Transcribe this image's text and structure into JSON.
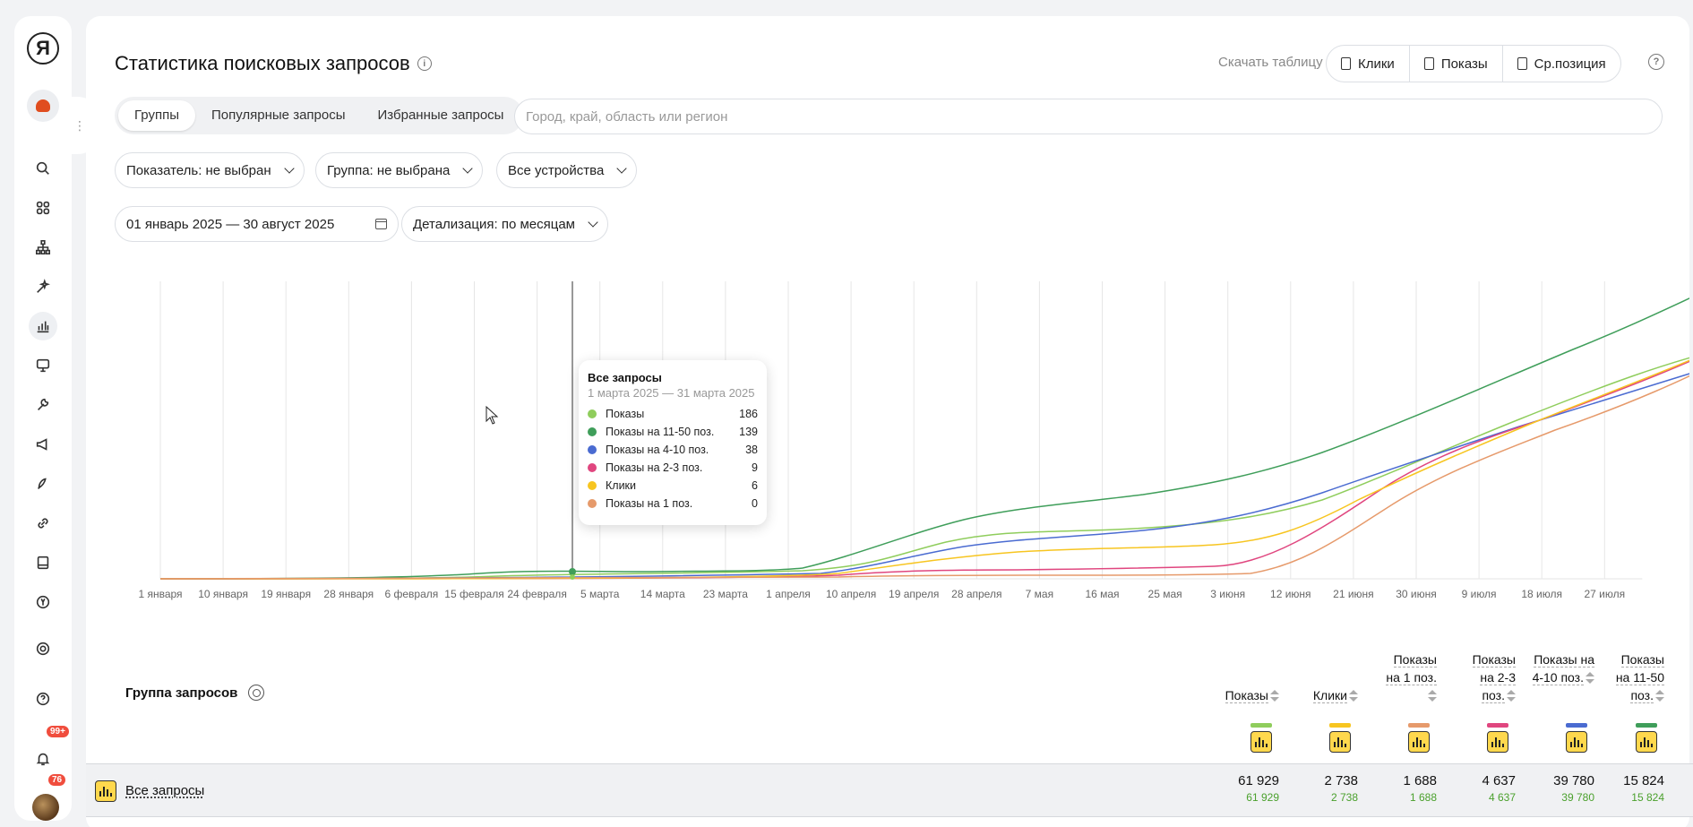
{
  "rail": {
    "logo": "Я",
    "items": [
      {
        "icon": "search-icon",
        "active": false
      },
      {
        "icon": "grid-icon",
        "active": false
      },
      {
        "icon": "sitemap-icon",
        "active": false
      },
      {
        "icon": "magic-wand-icon",
        "active": false
      },
      {
        "icon": "bar-chart-icon",
        "active": true
      },
      {
        "icon": "monitor-icon",
        "active": false
      },
      {
        "icon": "wrench-icon",
        "active": false
      },
      {
        "icon": "megaphone-icon",
        "active": false
      },
      {
        "icon": "rocket-hand-icon",
        "active": false
      },
      {
        "icon": "link-icon",
        "active": false
      },
      {
        "icon": "book-icon",
        "active": false
      },
      {
        "icon": "yandex-circle-icon",
        "active": false
      },
      {
        "icon": "settings-icon",
        "active": false
      },
      {
        "icon": "help-icon",
        "active": false
      },
      {
        "icon": "bell-icon",
        "active": false
      }
    ],
    "bell_badge": "99+",
    "avatar_badge": "76"
  },
  "header": {
    "title": "Статистика поисковых запросов",
    "download_label": "Скачать таблицу",
    "download_buttons": [
      "Клики",
      "Показы",
      "Ср.позиция"
    ]
  },
  "tabs": [
    "Группы",
    "Популярные запросы",
    "Избранные запросы"
  ],
  "region_placeholder": "Город, край, область или регион",
  "filters": {
    "indicator": "Показатель: не выбран",
    "group": "Группа: не выбрана",
    "devices": "Все устройства",
    "date_range": "01 январь 2025 — 30 август 2025",
    "detail": "Детализация: по месяцам"
  },
  "chart_data": {
    "type": "line",
    "x": [
      "1 января",
      "10 января",
      "19 января",
      "28 января",
      "6 февраля",
      "15 февраля",
      "24 февраля",
      "5 марта",
      "14 марта",
      "23 марта",
      "1 апреля",
      "10 апреля",
      "19 апреля",
      "28 апреля",
      "7 мая",
      "16 мая",
      "25 мая",
      "3 июня",
      "12 июня",
      "21 июня",
      "30 июня",
      "9 июля",
      "18 июля",
      "27 июля"
    ],
    "series": [
      {
        "name": "Показы",
        "color": "#8fcd5c"
      },
      {
        "name": "Показы на 11-50 поз.",
        "color": "#3f9e5a"
      },
      {
        "name": "Показы на 4-10 поз.",
        "color": "#4a6bd1"
      },
      {
        "name": "Показы на 2-3 поз.",
        "color": "#e0467f"
      },
      {
        "name": "Клики",
        "color": "#f7c520"
      },
      {
        "name": "Показы на 1 поз.",
        "color": "#e69a6b"
      }
    ],
    "grid": true,
    "tooltip": {
      "title": "Все запросы",
      "period": "1 марта 2025 — 31 марта 2025",
      "rows": [
        {
          "name": "Показы",
          "value": "186",
          "color": "#8fcd5c"
        },
        {
          "name": "Показы на 11-50 поз.",
          "value": "139",
          "color": "#3f9e5a"
        },
        {
          "name": "Показы на 4-10 поз.",
          "value": "38",
          "color": "#4a6bd1"
        },
        {
          "name": "Показы на 2-3 поз.",
          "value": "9",
          "color": "#e0467f"
        },
        {
          "name": "Клики",
          "value": "6",
          "color": "#f7c520"
        },
        {
          "name": "Показы на 1 поз.",
          "value": "0",
          "color": "#e69a6b"
        }
      ]
    }
  },
  "table": {
    "group_header": "Группа запросов",
    "columns": [
      {
        "label": "Показы",
        "color": "#8fcd5c"
      },
      {
        "label": "Клики",
        "color": "#f7c520"
      },
      {
        "label": "Показы на 1 поз.",
        "color": "#e69a6b"
      },
      {
        "label": "Показы на 2-3 поз.",
        "color": "#e0467f"
      },
      {
        "label": "Показы на 4-10 поз.",
        "color": "#4a6bd1"
      },
      {
        "label": "Показы на 11-50 поз.",
        "color": "#3f9e5a"
      }
    ],
    "rows": [
      {
        "label": "Все запросы",
        "values": [
          "61 929",
          "2 738",
          "1 688",
          "4 637",
          "39 780",
          "15 824"
        ],
        "sub": [
          "61 929",
          "2 738",
          "1 688",
          "4 637",
          "39 780",
          "15 824"
        ]
      }
    ]
  }
}
